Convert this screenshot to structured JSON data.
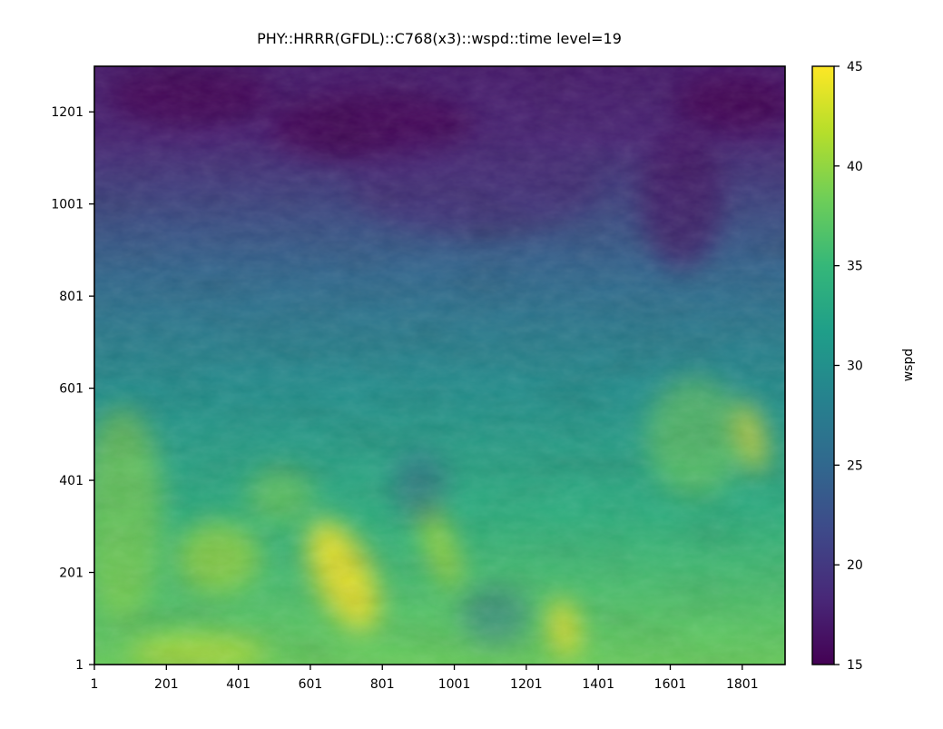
{
  "chart_data": {
    "type": "heatmap",
    "title": "PHY::HRRR(GFDL)::C768(x3)::wspd::time level=19",
    "xlabel": "",
    "ylabel": "",
    "x_ticks": [
      "1",
      "201",
      "401",
      "601",
      "801",
      "1001",
      "1201",
      "1401",
      "1601",
      "1801"
    ],
    "y_ticks": [
      "1",
      "201",
      "401",
      "601",
      "801",
      "1001",
      "1201"
    ],
    "xlim": [
      1,
      1920
    ],
    "ylim": [
      1,
      1300
    ],
    "colorbar": {
      "label": "wspd",
      "ticks": [
        "15",
        "20",
        "25",
        "30",
        "35",
        "40",
        "45"
      ],
      "range": [
        15,
        45
      ],
      "colormap": "viridis",
      "stops": [
        "#440154",
        "#482878",
        "#3e4989",
        "#31688e",
        "#26828e",
        "#1f9e89",
        "#35b779",
        "#6ece58",
        "#b5de2b",
        "#fde725"
      ]
    },
    "field_description_values": {
      "top_region_wspd": 17,
      "middle_region_wspd": 28,
      "bottom_region_wspd": 38,
      "max_wspd": 45,
      "min_wspd": 15
    },
    "grid": false,
    "legend": "colorbar-right"
  }
}
